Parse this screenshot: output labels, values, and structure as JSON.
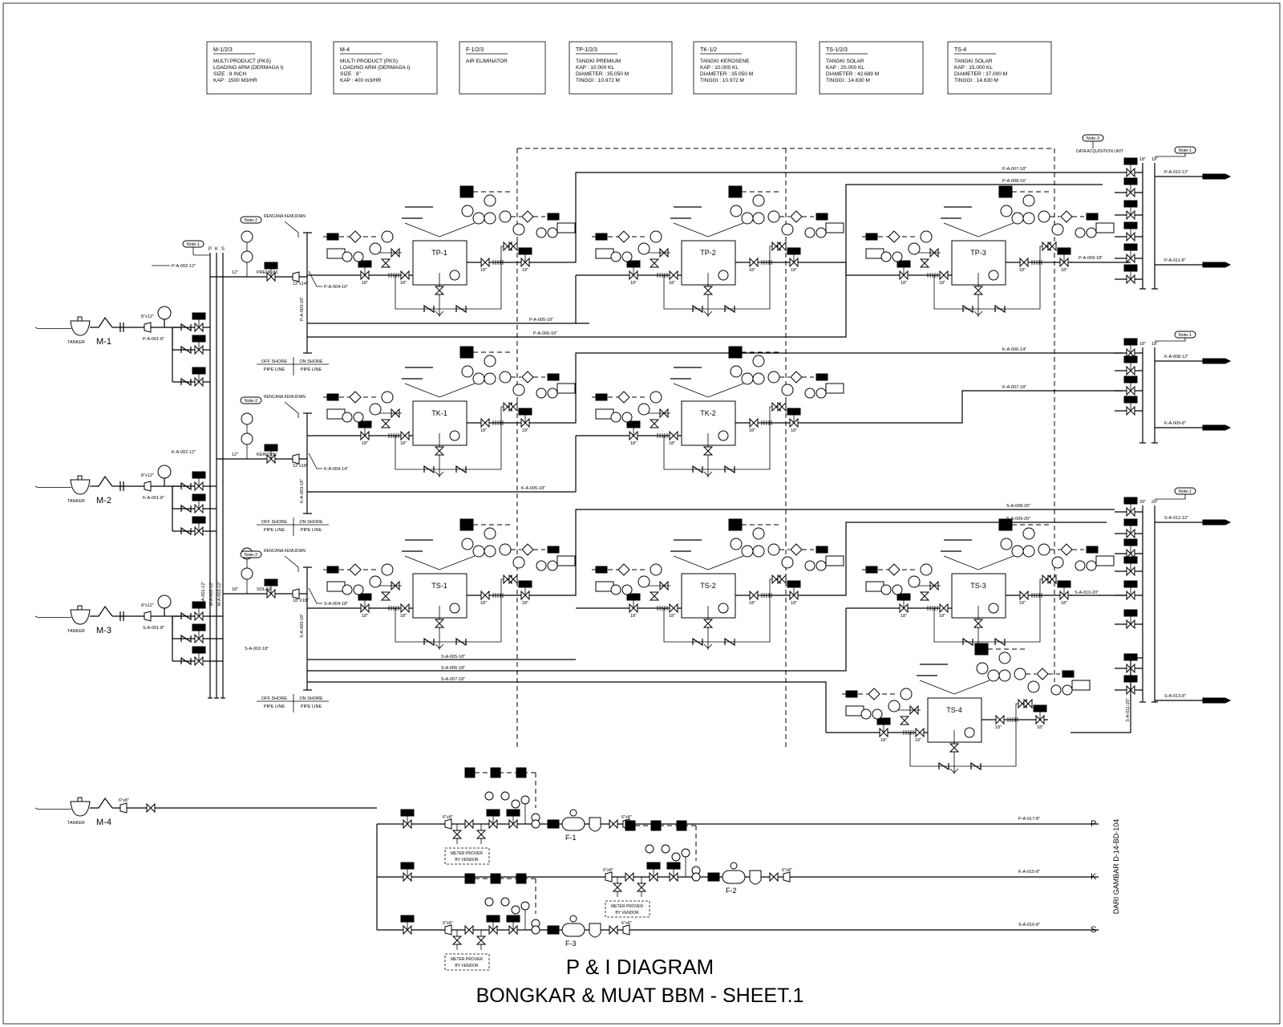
{
  "legend": [
    {
      "title": "M-1/2/3",
      "lines": [
        "MULTI PRODUCT (PKS)",
        "LOADING ARM (DERMAGA I)",
        "SIZE   : 8 INCH",
        "KAP     : 1500 M3/HR"
      ]
    },
    {
      "title": "M-4",
      "lines": [
        "MULTI PRODUCT (PKS)",
        "LOADING ARM (DERMAGA I)",
        "SIZE   : 6\"",
        "KAP     : 400 m3/HR"
      ]
    },
    {
      "title": "F-1/2/3",
      "lines": [
        "AIR ELIMINATOR"
      ]
    },
    {
      "title": "TP-1/2/3",
      "lines": [
        "TANGKI PREMIUM",
        "KAP          : 10.000 KL",
        "DIAMETER  : 35.050 M",
        "TINGGI      : 10.972 M"
      ]
    },
    {
      "title": "TK-1/2",
      "lines": [
        "TANGKI KEROSENE",
        "KAP          : 10.000 KL",
        "DIAMETER  : 35.050 M",
        "TINGGI      : 10.972 M"
      ]
    },
    {
      "title": "TS-1/2/3",
      "lines": [
        "TANGKI SOLAR",
        "KAP          : 20.000 KL",
        "DIAMETER  : 42.689 M",
        "TINGGI      : 14.630 M"
      ]
    },
    {
      "title": "TS-4",
      "lines": [
        "TANGKI SOLAR",
        "KAP          : 15.000 KL",
        "DIAMETER  : 37.000 M",
        "TINGGI      : 14.630 M"
      ]
    }
  ],
  "tankers": {
    "word": "TANKER",
    "ids": [
      "M-1",
      "M-2",
      "M-3",
      "M-4"
    ]
  },
  "tanks": [
    "TP-1",
    "TP-2",
    "TP-3",
    "TK-1",
    "TK-2",
    "TS-1",
    "TS-2",
    "TS-3",
    "TS-4"
  ],
  "header_lines": [
    "P",
    "K",
    "S"
  ],
  "products": [
    "PREMIUM",
    "KEROSIN",
    "SOLAR"
  ],
  "shore": {
    "off": "OFF SHORE",
    "on": "ON SHORE",
    "pipe": "PIPE LINE"
  },
  "notes": {
    "note1": "Note-1",
    "note2": "Note-2",
    "note3": "Note-3",
    "rencana": "RENCANA KEMUDIAN",
    "dau": "DATA ACQUISITION UNIT"
  },
  "sizes": {
    "s12": "12\"",
    "s18": "18\"",
    "s16": "16\"",
    "s20": "20\"",
    "red1": "12\"x14\"",
    "red2": "12\"x18\"",
    "red3": "18\"X18\"",
    "red4": "8\"x12\"",
    "red5": "6\"x8\""
  },
  "pipe_labels": [
    "P-A-002-12\"",
    "P-A-001-8\"",
    "K-A-002-12\"",
    "K-A-001-8\"",
    "S-A-001-8\"",
    "M-A-001-12\"",
    "M-A-002-12\"",
    "M-A-003-12\"",
    "P-A-003-18\"",
    "P-A-004-16\"",
    "P-A-005-18\"",
    "P-A-006-16\"",
    "P-A-007-18\"",
    "P-A-008-16\"",
    "P-A-009-18\"",
    "P-A-010-12\"",
    "P-A-011-8\"",
    "K-A-003-18\"",
    "K-A-004-14\"",
    "K-A-005-18\"",
    "K-A-006-14\"",
    "K-A-007-18\"",
    "K-A-008-12\"",
    "K-A-009-8\"",
    "S-A-002-18\"",
    "S-A-003-18\"",
    "S-A-004-18\"",
    "S-A-005-18\"",
    "S-A-006-18\"",
    "S-A-007-18\"",
    "S-A-008-20\"",
    "S-A-009-20\"",
    "S-A-010-20\"",
    "S-A-011-20\"",
    "S-A-012-12\"",
    "S-A-013-8\"",
    "P-A-017-8\"",
    "K-A-015-8\"",
    "S-A-016-8\""
  ],
  "filters": [
    "F-1",
    "F-2",
    "F-3"
  ],
  "meter_prover": {
    "l1": "METER PROVER",
    "l2": "BY VENDOR"
  },
  "outputs": [
    "P",
    "K",
    "S"
  ],
  "reference": "DARI GAMBAR D-14-BD-104",
  "title": {
    "line1": "P & I  DIAGRAM",
    "line2": "BONGKAR & MUAT BBM - SHEET.1"
  }
}
